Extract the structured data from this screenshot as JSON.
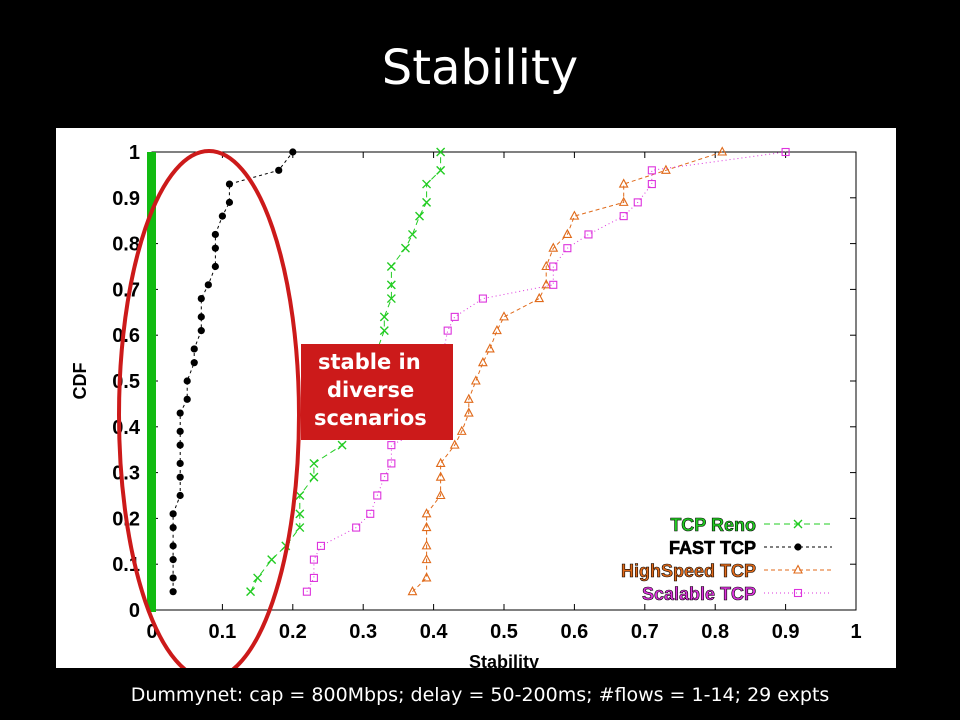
{
  "slide": {
    "title": "Stability",
    "caption": "Dummynet: cap = 800Mbps; delay = 50-200ms; #flows = 1-14; 29 expts",
    "callout_lines": [
      "stable in",
      "diverse",
      "scenarios"
    ]
  },
  "colors": {
    "background": "#000000",
    "panel": "#ffffff",
    "reno": "#22cc22",
    "fast": "#000000",
    "highspeed": "#e06a1a",
    "scalable": "#dd33dd",
    "green_bar": "#11bb11",
    "ellipse": "#cc1a1a",
    "callout_bg": "#cc1a1a"
  },
  "chart_data": {
    "type": "line",
    "xlabel": "Stability",
    "ylabel": "CDF",
    "xlim": [
      0,
      1
    ],
    "ylim": [
      0,
      1
    ],
    "xticks": [
      "0",
      "0.1",
      "0.2",
      "0.3",
      "0.4",
      "0.5",
      "0.6",
      "0.7",
      "0.8",
      "0.9",
      "1"
    ],
    "yticks": [
      "0",
      "0.1",
      "0.2",
      "0.3",
      "0.4",
      "0.5",
      "0.6",
      "0.7",
      "0.8",
      "0.9",
      "1"
    ],
    "legend_position": "bottom-right",
    "series": [
      {
        "name": "TCP Reno",
        "key": "reno",
        "marker": "x",
        "dash": "6 4",
        "points": [
          [
            0.14,
            0.04
          ],
          [
            0.15,
            0.07
          ],
          [
            0.17,
            0.11
          ],
          [
            0.19,
            0.14
          ],
          [
            0.21,
            0.18
          ],
          [
            0.21,
            0.21
          ],
          [
            0.21,
            0.25
          ],
          [
            0.23,
            0.29
          ],
          [
            0.23,
            0.32
          ],
          [
            0.27,
            0.36
          ],
          [
            0.33,
            0.61
          ],
          [
            0.33,
            0.64
          ],
          [
            0.34,
            0.68
          ],
          [
            0.34,
            0.71
          ],
          [
            0.34,
            0.75
          ],
          [
            0.36,
            0.79
          ],
          [
            0.37,
            0.82
          ],
          [
            0.38,
            0.86
          ],
          [
            0.39,
            0.89
          ],
          [
            0.39,
            0.93
          ],
          [
            0.41,
            0.96
          ],
          [
            0.41,
            1.0
          ]
        ]
      },
      {
        "name": "FAST TCP",
        "key": "fast",
        "marker": "dot",
        "dash": "3 3",
        "points": [
          [
            0.03,
            0.04
          ],
          [
            0.03,
            0.07
          ],
          [
            0.03,
            0.11
          ],
          [
            0.03,
            0.14
          ],
          [
            0.03,
            0.18
          ],
          [
            0.03,
            0.21
          ],
          [
            0.04,
            0.25
          ],
          [
            0.04,
            0.29
          ],
          [
            0.04,
            0.32
          ],
          [
            0.04,
            0.36
          ],
          [
            0.04,
            0.39
          ],
          [
            0.04,
            0.43
          ],
          [
            0.05,
            0.46
          ],
          [
            0.05,
            0.5
          ],
          [
            0.06,
            0.54
          ],
          [
            0.06,
            0.57
          ],
          [
            0.07,
            0.61
          ],
          [
            0.07,
            0.64
          ],
          [
            0.07,
            0.68
          ],
          [
            0.08,
            0.71
          ],
          [
            0.09,
            0.75
          ],
          [
            0.09,
            0.79
          ],
          [
            0.09,
            0.82
          ],
          [
            0.1,
            0.86
          ],
          [
            0.11,
            0.89
          ],
          [
            0.11,
            0.93
          ],
          [
            0.18,
            0.96
          ],
          [
            0.2,
            1.0
          ]
        ]
      },
      {
        "name": "HighSpeed TCP",
        "key": "highspeed",
        "marker": "triangle",
        "dash": "4 3",
        "points": [
          [
            0.37,
            0.04
          ],
          [
            0.39,
            0.07
          ],
          [
            0.39,
            0.11
          ],
          [
            0.39,
            0.14
          ],
          [
            0.39,
            0.18
          ],
          [
            0.39,
            0.21
          ],
          [
            0.41,
            0.25
          ],
          [
            0.41,
            0.29
          ],
          [
            0.41,
            0.32
          ],
          [
            0.43,
            0.36
          ],
          [
            0.44,
            0.39
          ],
          [
            0.45,
            0.43
          ],
          [
            0.45,
            0.46
          ],
          [
            0.46,
            0.5
          ],
          [
            0.47,
            0.54
          ],
          [
            0.48,
            0.57
          ],
          [
            0.49,
            0.61
          ],
          [
            0.5,
            0.64
          ],
          [
            0.55,
            0.68
          ],
          [
            0.56,
            0.71
          ],
          [
            0.56,
            0.75
          ],
          [
            0.57,
            0.79
          ],
          [
            0.59,
            0.82
          ],
          [
            0.6,
            0.86
          ],
          [
            0.67,
            0.89
          ],
          [
            0.67,
            0.93
          ],
          [
            0.73,
            0.96
          ],
          [
            0.81,
            1.0
          ]
        ]
      },
      {
        "name": "Scalable TCP",
        "key": "scalable",
        "marker": "square",
        "dash": "1 3",
        "points": [
          [
            0.22,
            0.04
          ],
          [
            0.23,
            0.07
          ],
          [
            0.23,
            0.11
          ],
          [
            0.24,
            0.14
          ],
          [
            0.29,
            0.18
          ],
          [
            0.31,
            0.21
          ],
          [
            0.32,
            0.25
          ],
          [
            0.33,
            0.29
          ],
          [
            0.34,
            0.32
          ],
          [
            0.34,
            0.36
          ],
          [
            0.38,
            0.39
          ],
          [
            0.4,
            0.46
          ],
          [
            0.42,
            0.61
          ],
          [
            0.43,
            0.64
          ],
          [
            0.47,
            0.68
          ],
          [
            0.57,
            0.71
          ],
          [
            0.57,
            0.75
          ],
          [
            0.59,
            0.79
          ],
          [
            0.62,
            0.82
          ],
          [
            0.67,
            0.86
          ],
          [
            0.69,
            0.89
          ],
          [
            0.71,
            0.93
          ],
          [
            0.71,
            0.96
          ],
          [
            0.9,
            1.0
          ]
        ]
      }
    ]
  }
}
